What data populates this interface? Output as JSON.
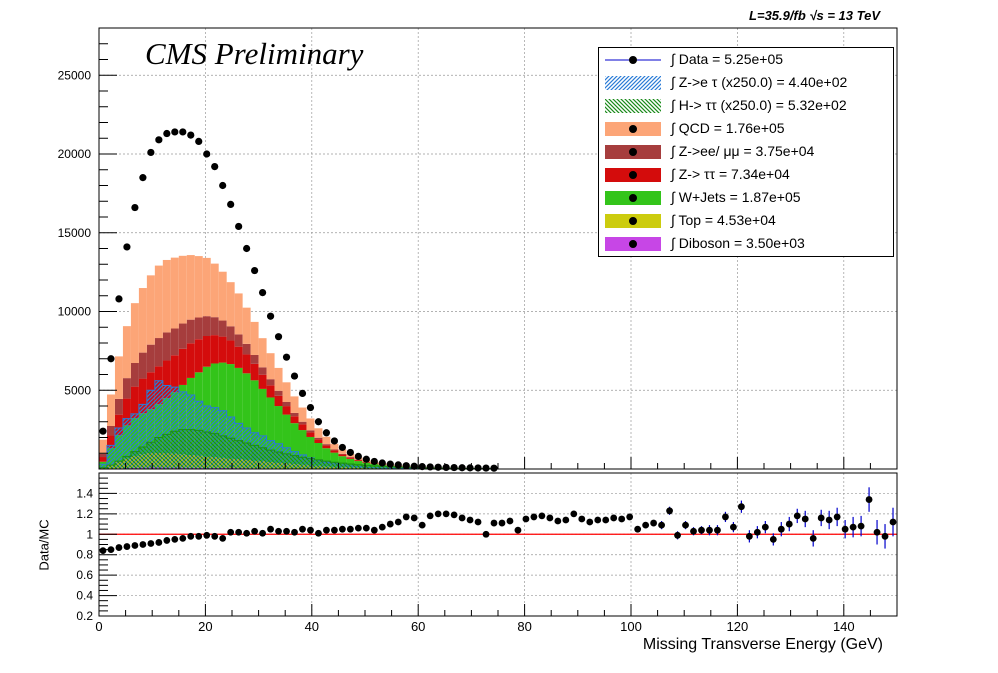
{
  "header": {
    "lumi_text": "L=35.9/fb   √s = 13 TeV",
    "cms_text": "CMS Preliminary"
  },
  "legend": [
    {
      "label": "∫ Data = 5.25e+05",
      "kind": "marker",
      "color": "#000000",
      "line": "#0000cc"
    },
    {
      "label": "∫ Z->e τ (x250.0) = 4.40e+02",
      "kind": "hatch",
      "color": "#2a7bd6"
    },
    {
      "label": "∫ H-> ττ (x250.0) = 5.32e+02",
      "kind": "hatch",
      "color": "#1a8a1a"
    },
    {
      "label": "∫ QCD = 1.76e+05",
      "kind": "fill",
      "color": "#fca577"
    },
    {
      "label": "∫ Z->ee/ μμ = 3.75e+04",
      "kind": "fill",
      "color": "#a63d3d"
    },
    {
      "label": "∫ Z-> ττ = 7.34e+04",
      "kind": "fill",
      "color": "#d40c0c"
    },
    {
      "label": "∫ W+Jets = 1.87e+05",
      "kind": "fill",
      "color": "#33c41a"
    },
    {
      "label": "∫ Top = 4.53e+04",
      "kind": "fill",
      "color": "#cccc0e"
    },
    {
      "label": "∫ Diboson = 3.50e+03",
      "kind": "fill",
      "color": "#c746e6"
    }
  ],
  "axes": {
    "xlabel": "Missing Transverse Energy (GeV)",
    "ratio_ylabel": "Data/MC"
  },
  "chart_data": {
    "type": "bar",
    "title": "",
    "xlabel": "Missing Transverse Energy (GeV)",
    "ylabel": "",
    "xlim": [
      0,
      150
    ],
    "ylim": [
      0,
      28000
    ],
    "bin_width": 1.5,
    "x_ticks": [
      0,
      20,
      40,
      60,
      80,
      100,
      120,
      140
    ],
    "y_ticks": [
      5000,
      10000,
      15000,
      20000,
      25000
    ],
    "stack_order": [
      "Diboson",
      "Top",
      "W+Jets",
      "Z-> ττ",
      "Z->ee/ μμ",
      "QCD"
    ],
    "series": [
      {
        "name": "Data",
        "values": [
          2400,
          7000,
          10800,
          14100,
          16600,
          18500,
          20100,
          20900,
          21300,
          21400,
          21400,
          21200,
          20800,
          20000,
          19200,
          18000,
          16800,
          15400,
          14000,
          12600,
          11200,
          9700,
          8400,
          7100,
          5900,
          4800,
          3900,
          3000,
          2300,
          1780,
          1370,
          1050,
          800,
          620,
          480,
          380,
          310,
          260,
          210,
          175,
          150,
          130,
          113,
          100,
          90,
          80,
          72,
          65,
          58,
          52
        ]
      },
      {
        "name": "QCD",
        "values": [
          900,
          2000,
          2700,
          3300,
          3800,
          4100,
          4400,
          4600,
          4600,
          4500,
          4300,
          4100,
          3900,
          3700,
          3400,
          3100,
          2800,
          2600,
          2300,
          2100,
          1850,
          1650,
          1450,
          1250,
          1050,
          900,
          750,
          600,
          470,
          360,
          270,
          200,
          150,
          110,
          80,
          60,
          45,
          35,
          28,
          23,
          20,
          17,
          15,
          13,
          12,
          11,
          10,
          9,
          8,
          7
        ]
      },
      {
        "name": "Z->ee/ μμ",
        "values": [
          200,
          600,
          1000,
          1300,
          1500,
          1650,
          1750,
          1800,
          1780,
          1700,
          1600,
          1500,
          1380,
          1260,
          1140,
          1020,
          900,
          780,
          670,
          560,
          470,
          390,
          320,
          260,
          210,
          170,
          135,
          105,
          80,
          60,
          45,
          35,
          27,
          20,
          15,
          12,
          9,
          7,
          6,
          5,
          4,
          4,
          3,
          3,
          3,
          2,
          2,
          2,
          2,
          2
        ]
      },
      {
        "name": "Z-> ττ",
        "values": [
          300,
          800,
          1300,
          1700,
          2000,
          2200,
          2350,
          2400,
          2400,
          2350,
          2300,
          2200,
          2100,
          1950,
          1800,
          1650,
          1500,
          1350,
          1200,
          1050,
          900,
          770,
          650,
          540,
          440,
          360,
          290,
          230,
          180,
          140,
          105,
          80,
          60,
          45,
          34,
          26,
          20,
          16,
          13,
          11,
          9,
          8,
          7,
          6,
          5,
          5,
          4,
          4,
          3,
          3
        ]
      },
      {
        "name": "W+Jets",
        "values": [
          400,
          1100,
          1700,
          2100,
          2400,
          2600,
          2800,
          3100,
          3500,
          3900,
          4400,
          4900,
          5300,
          5700,
          5950,
          6050,
          6000,
          5800,
          5500,
          5100,
          4600,
          4100,
          3600,
          3100,
          2600,
          2200,
          1800,
          1450,
          1150,
          900,
          700,
          550,
          430,
          340,
          270,
          220,
          180,
          150,
          125,
          105,
          90,
          78,
          68,
          60,
          53,
          47,
          42,
          37,
          33,
          30
        ]
      },
      {
        "name": "Top",
        "values": [
          50,
          200,
          400,
          600,
          750,
          850,
          900,
          920,
          900,
          880,
          850,
          800,
          760,
          720,
          680,
          640,
          600,
          560,
          520,
          480,
          440,
          400,
          360,
          320,
          280,
          245,
          210,
          180,
          150,
          125,
          100,
          82,
          66,
          53,
          43,
          35,
          29,
          24,
          20,
          17,
          14,
          12,
          10,
          9,
          8,
          7,
          6,
          5,
          5,
          4
        ]
      },
      {
        "name": "Diboson",
        "values": [
          10,
          30,
          50,
          70,
          80,
          90,
          95,
          95,
          92,
          90,
          86,
          82,
          78,
          74,
          70,
          66,
          62,
          58,
          54,
          50,
          46,
          42,
          38,
          34,
          30,
          27,
          24,
          21,
          18,
          15,
          13,
          11,
          9,
          8,
          7,
          6,
          5,
          4,
          4,
          3,
          3,
          2,
          2,
          2,
          2,
          2,
          1,
          1,
          1,
          1
        ]
      },
      {
        "name": "Z->e τ (x250.0)",
        "values": [
          300,
          1500,
          2600,
          3200,
          3500,
          4100,
          5000,
          5600,
          5300,
          5200,
          4900,
          4700,
          4300,
          4000,
          3900,
          3700,
          3300,
          2900,
          2600,
          2300,
          2100,
          1800,
          1600,
          1350,
          1100,
          900,
          700,
          560,
          430,
          330,
          260,
          200,
          150,
          115,
          90,
          70,
          55,
          45,
          37,
          30,
          25,
          21,
          18,
          16,
          14,
          12,
          11,
          10,
          9,
          8
        ]
      },
      {
        "name": "H-> ττ (x250.0)",
        "values": [
          80,
          250,
          500,
          800,
          1100,
          1400,
          1700,
          2000,
          2200,
          2400,
          2500,
          2500,
          2450,
          2350,
          2250,
          2100,
          1950,
          1800,
          1650,
          1500,
          1350,
          1200,
          1080,
          960,
          850,
          750,
          660,
          580,
          500,
          430,
          370,
          320,
          270,
          230,
          195,
          165,
          140,
          118,
          100,
          85,
          72,
          61,
          52,
          44,
          38,
          32,
          28,
          24,
          21,
          18
        ]
      }
    ],
    "ratio": {
      "ylabel": "Data/MC",
      "ylim": [
        0.2,
        1.6
      ],
      "y_ticks": [
        0.2,
        0.4,
        0.6,
        0.8,
        1,
        1.2,
        1.4
      ],
      "reference": 1,
      "points": [
        {
          "x": 0.75,
          "y": 0.84,
          "e": 0.01
        },
        {
          "x": 2.25,
          "y": 0.85,
          "e": 0.01
        },
        {
          "x": 3.75,
          "y": 0.87,
          "e": 0.01
        },
        {
          "x": 5.25,
          "y": 0.88,
          "e": 0.01
        },
        {
          "x": 6.75,
          "y": 0.89,
          "e": 0.01
        },
        {
          "x": 8.25,
          "y": 0.9,
          "e": 0.01
        },
        {
          "x": 9.75,
          "y": 0.91,
          "e": 0.01
        },
        {
          "x": 11.25,
          "y": 0.92,
          "e": 0.01
        },
        {
          "x": 12.75,
          "y": 0.94,
          "e": 0.01
        },
        {
          "x": 14.25,
          "y": 0.95,
          "e": 0.01
        },
        {
          "x": 15.75,
          "y": 0.96,
          "e": 0.01
        },
        {
          "x": 17.25,
          "y": 0.98,
          "e": 0.01
        },
        {
          "x": 18.75,
          "y": 0.98,
          "e": 0.01
        },
        {
          "x": 20.25,
          "y": 0.99,
          "e": 0.01
        },
        {
          "x": 21.75,
          "y": 0.98,
          "e": 0.01
        },
        {
          "x": 23.25,
          "y": 0.96,
          "e": 0.01
        },
        {
          "x": 24.75,
          "y": 1.02,
          "e": 0.01
        },
        {
          "x": 26.25,
          "y": 1.02,
          "e": 0.01
        },
        {
          "x": 27.75,
          "y": 1.01,
          "e": 0.01
        },
        {
          "x": 29.25,
          "y": 1.03,
          "e": 0.01
        },
        {
          "x": 30.75,
          "y": 1.01,
          "e": 0.01
        },
        {
          "x": 32.25,
          "y": 1.05,
          "e": 0.01
        },
        {
          "x": 33.75,
          "y": 1.03,
          "e": 0.01
        },
        {
          "x": 35.25,
          "y": 1.03,
          "e": 0.01
        },
        {
          "x": 36.75,
          "y": 1.02,
          "e": 0.01
        },
        {
          "x": 38.25,
          "y": 1.05,
          "e": 0.01
        },
        {
          "x": 39.75,
          "y": 1.04,
          "e": 0.01
        },
        {
          "x": 41.25,
          "y": 1.01,
          "e": 0.01
        },
        {
          "x": 42.75,
          "y": 1.04,
          "e": 0.01
        },
        {
          "x": 44.25,
          "y": 1.04,
          "e": 0.01
        },
        {
          "x": 45.75,
          "y": 1.05,
          "e": 0.01
        },
        {
          "x": 47.25,
          "y": 1.05,
          "e": 0.01
        },
        {
          "x": 48.75,
          "y": 1.06,
          "e": 0.01
        },
        {
          "x": 50.25,
          "y": 1.06,
          "e": 0.01
        },
        {
          "x": 51.75,
          "y": 1.04,
          "e": 0.01
        },
        {
          "x": 53.25,
          "y": 1.07,
          "e": 0.01
        },
        {
          "x": 54.75,
          "y": 1.1,
          "e": 0.01
        },
        {
          "x": 56.25,
          "y": 1.12,
          "e": 0.01
        },
        {
          "x": 57.75,
          "y": 1.17,
          "e": 0.01
        },
        {
          "x": 59.25,
          "y": 1.16,
          "e": 0.01
        },
        {
          "x": 60.75,
          "y": 1.09,
          "e": 0.01
        },
        {
          "x": 62.25,
          "y": 1.18,
          "e": 0.01
        },
        {
          "x": 63.75,
          "y": 1.2,
          "e": 0.01
        },
        {
          "x": 65.25,
          "y": 1.2,
          "e": 0.01
        },
        {
          "x": 66.75,
          "y": 1.19,
          "e": 0.01
        },
        {
          "x": 68.25,
          "y": 1.16,
          "e": 0.01
        },
        {
          "x": 69.75,
          "y": 1.14,
          "e": 0.01
        },
        {
          "x": 71.25,
          "y": 1.12,
          "e": 0.01
        },
        {
          "x": 72.75,
          "y": 1.0,
          "e": 0.01
        },
        {
          "x": 74.25,
          "y": 1.11,
          "e": 0.01
        },
        {
          "x": 75.75,
          "y": 1.11,
          "e": 0.01
        },
        {
          "x": 77.25,
          "y": 1.13,
          "e": 0.01
        },
        {
          "x": 78.75,
          "y": 1.04,
          "e": 0.01
        },
        {
          "x": 80.25,
          "y": 1.15,
          "e": 0.02
        },
        {
          "x": 81.75,
          "y": 1.17,
          "e": 0.02
        },
        {
          "x": 83.25,
          "y": 1.18,
          "e": 0.02
        },
        {
          "x": 84.75,
          "y": 1.16,
          "e": 0.02
        },
        {
          "x": 86.25,
          "y": 1.13,
          "e": 0.02
        },
        {
          "x": 87.75,
          "y": 1.14,
          "e": 0.02
        },
        {
          "x": 89.25,
          "y": 1.2,
          "e": 0.02
        },
        {
          "x": 90.75,
          "y": 1.15,
          "e": 0.02
        },
        {
          "x": 92.25,
          "y": 1.12,
          "e": 0.03
        },
        {
          "x": 93.75,
          "y": 1.14,
          "e": 0.03
        },
        {
          "x": 95.25,
          "y": 1.14,
          "e": 0.03
        },
        {
          "x": 96.75,
          "y": 1.16,
          "e": 0.03
        },
        {
          "x": 98.25,
          "y": 1.15,
          "e": 0.03
        },
        {
          "x": 99.75,
          "y": 1.17,
          "e": 0.03
        },
        {
          "x": 101.25,
          "y": 1.05,
          "e": 0.03
        },
        {
          "x": 102.75,
          "y": 1.09,
          "e": 0.03
        },
        {
          "x": 104.25,
          "y": 1.11,
          "e": 0.03
        },
        {
          "x": 105.75,
          "y": 1.09,
          "e": 0.04
        },
        {
          "x": 107.25,
          "y": 1.23,
          "e": 0.04
        },
        {
          "x": 108.75,
          "y": 0.99,
          "e": 0.04
        },
        {
          "x": 110.25,
          "y": 1.09,
          "e": 0.04
        },
        {
          "x": 111.75,
          "y": 1.03,
          "e": 0.04
        },
        {
          "x": 113.25,
          "y": 1.04,
          "e": 0.04
        },
        {
          "x": 114.75,
          "y": 1.04,
          "e": 0.05
        },
        {
          "x": 116.25,
          "y": 1.04,
          "e": 0.05
        },
        {
          "x": 117.75,
          "y": 1.17,
          "e": 0.05
        },
        {
          "x": 119.25,
          "y": 1.07,
          "e": 0.05
        },
        {
          "x": 120.75,
          "y": 1.27,
          "e": 0.06
        },
        {
          "x": 122.25,
          "y": 0.98,
          "e": 0.06
        },
        {
          "x": 123.75,
          "y": 1.02,
          "e": 0.06
        },
        {
          "x": 125.25,
          "y": 1.07,
          "e": 0.06
        },
        {
          "x": 126.75,
          "y": 0.95,
          "e": 0.06
        },
        {
          "x": 128.25,
          "y": 1.05,
          "e": 0.07
        },
        {
          "x": 129.75,
          "y": 1.1,
          "e": 0.07
        },
        {
          "x": 131.25,
          "y": 1.18,
          "e": 0.07
        },
        {
          "x": 132.75,
          "y": 1.15,
          "e": 0.08
        },
        {
          "x": 134.25,
          "y": 0.96,
          "e": 0.08
        },
        {
          "x": 135.75,
          "y": 1.16,
          "e": 0.08
        },
        {
          "x": 137.25,
          "y": 1.14,
          "e": 0.09
        },
        {
          "x": 138.75,
          "y": 1.17,
          "e": 0.09
        },
        {
          "x": 140.25,
          "y": 1.05,
          "e": 0.09
        },
        {
          "x": 141.75,
          "y": 1.07,
          "e": 0.1
        },
        {
          "x": 143.25,
          "y": 1.08,
          "e": 0.1
        },
        {
          "x": 144.75,
          "y": 1.34,
          "e": 0.12
        },
        {
          "x": 146.25,
          "y": 1.02,
          "e": 0.12
        },
        {
          "x": 147.75,
          "y": 0.98,
          "e": 0.12
        },
        {
          "x": 149.25,
          "y": 1.12,
          "e": 0.14
        }
      ]
    },
    "colors": {
      "QCD": "#fca577",
      "Z->ee/ μμ": "#a63d3d",
      "Z-> ττ": "#d40c0c",
      "W+Jets": "#33c41a",
      "Top": "#cccc0e",
      "Diboson": "#c746e6",
      "Z->e τ (x250.0)": "#2a7bd6",
      "H-> ττ (x250.0)": "#1a8a1a",
      "Data": "#000000",
      "reference_line": "#ff0000",
      "error_bar": "#0000cc"
    },
    "grid": true,
    "legend_position": "top-right"
  }
}
